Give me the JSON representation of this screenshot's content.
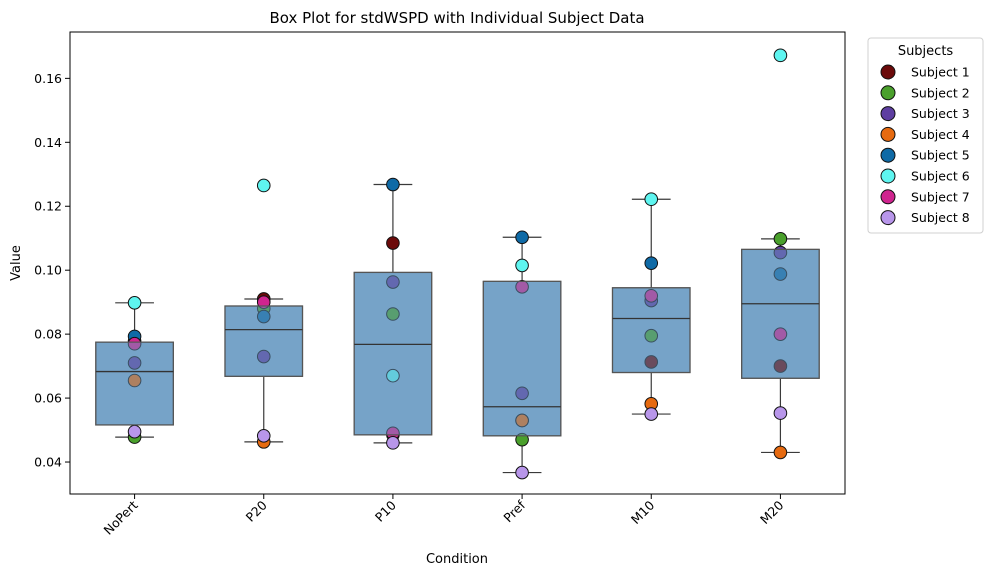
{
  "chart_data": {
    "type": "box",
    "title": "Box Plot for stdWSPD with Individual Subject Data",
    "xlabel": "Condition",
    "ylabel": "Value",
    "ylim": [
      0.03,
      0.1745
    ],
    "yticks": [
      0.04,
      0.06,
      0.08,
      0.1,
      0.12,
      0.14,
      0.16
    ],
    "ytick_labels": [
      "0.04",
      "0.06",
      "0.08",
      "0.10",
      "0.12",
      "0.14",
      "0.16"
    ],
    "categories": [
      "NoPert",
      "P20",
      "P10",
      "Pref",
      "M10",
      "M20"
    ],
    "grid": false,
    "legend": {
      "title": "Subjects",
      "placement": "outside-top-right"
    },
    "boxes": [
      {
        "category": "NoPert",
        "whisker_low": 0.0478,
        "q1": 0.0516,
        "median": 0.0683,
        "q3": 0.0775,
        "whisker_high": 0.0898
      },
      {
        "category": "P20",
        "whisker_low": 0.0463,
        "q1": 0.0668,
        "median": 0.0814,
        "q3": 0.0888,
        "whisker_high": 0.091
      },
      {
        "category": "P10",
        "whisker_low": 0.046,
        "q1": 0.0485,
        "median": 0.0768,
        "q3": 0.0993,
        "whisker_high": 0.1268
      },
      {
        "category": "Pref",
        "whisker_low": 0.0367,
        "q1": 0.0482,
        "median": 0.0573,
        "q3": 0.0965,
        "whisker_high": 0.1103
      },
      {
        "category": "M10",
        "whisker_low": 0.055,
        "q1": 0.068,
        "median": 0.0849,
        "q3": 0.0945,
        "whisker_high": 0.1222
      },
      {
        "category": "M20",
        "whisker_low": 0.043,
        "q1": 0.0662,
        "median": 0.0895,
        "q3": 0.1065,
        "whisker_high": 0.1098
      }
    ],
    "series": [
      {
        "name": "Subject 1",
        "color": "#6b0a0a",
        "values": [
          0.0778,
          0.091,
          0.1085,
          0.053,
          0.0713,
          0.07
        ]
      },
      {
        "name": "Subject 2",
        "color": "#4aa02c",
        "values": [
          0.0478,
          0.088,
          0.0863,
          0.047,
          0.0795,
          0.1098
        ]
      },
      {
        "name": "Subject 3",
        "color": "#5e3ea1",
        "values": [
          0.071,
          0.073,
          0.0963,
          0.0615,
          0.0905,
          0.1055
        ]
      },
      {
        "name": "Subject 4",
        "color": "#e66a10",
        "values": [
          0.0655,
          0.0463,
          0.0485,
          0.053,
          0.0582,
          0.043
        ]
      },
      {
        "name": "Subject 5",
        "color": "#0f6aa6",
        "values": [
          0.0793,
          0.0855,
          0.1268,
          0.1103,
          0.1022,
          0.0988
        ]
      },
      {
        "name": "Subject 6",
        "color": "#5ef5f0",
        "values": [
          0.0898,
          0.1265,
          0.067,
          0.1015,
          0.1222,
          0.1672
        ]
      },
      {
        "name": "Subject 7",
        "color": "#d0258f",
        "values": [
          0.077,
          0.09,
          0.049,
          0.0948,
          0.092,
          0.08
        ]
      },
      {
        "name": "Subject 8",
        "color": "#b896ea",
        "values": [
          0.0495,
          0.0482,
          0.046,
          0.0367,
          0.055,
          0.0553
        ]
      }
    ]
  }
}
